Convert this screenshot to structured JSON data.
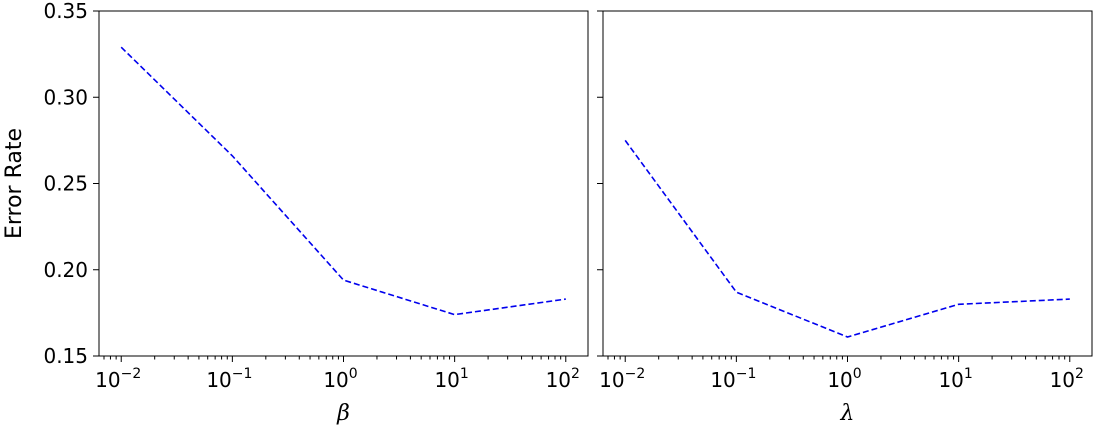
{
  "chart_data": [
    {
      "type": "line",
      "xscale": "log",
      "x": [
        0.01,
        0.1,
        1,
        10,
        100
      ],
      "x_tick_labels": [
        {
          "base": "10",
          "exp": "−2"
        },
        {
          "base": "10",
          "exp": "−1"
        },
        {
          "base": "10",
          "exp": "0"
        },
        {
          "base": "10",
          "exp": "1"
        },
        {
          "base": "10",
          "exp": "2"
        }
      ],
      "series": [
        {
          "values": [
            0.329,
            0.266,
            0.194,
            0.174,
            0.183
          ],
          "color": "#0000ee",
          "style": "dashed"
        }
      ],
      "xlabel": "β",
      "ylabel": "Error Rate",
      "ylim": [
        0.15,
        0.35
      ],
      "y_ticks": [
        0.15,
        0.2,
        0.25,
        0.3,
        0.35
      ],
      "y_tick_labels": [
        "0.15",
        "0.20",
        "0.25",
        "0.30",
        "0.35"
      ],
      "grid": false
    },
    {
      "type": "line",
      "xscale": "log",
      "x": [
        0.01,
        0.1,
        1,
        10,
        100
      ],
      "x_tick_labels": [
        {
          "base": "10",
          "exp": "−2"
        },
        {
          "base": "10",
          "exp": "−1"
        },
        {
          "base": "10",
          "exp": "0"
        },
        {
          "base": "10",
          "exp": "1"
        },
        {
          "base": "10",
          "exp": "2"
        }
      ],
      "series": [
        {
          "values": [
            0.275,
            0.187,
            0.161,
            0.18,
            0.183
          ],
          "color": "#0000ee",
          "style": "dashed"
        }
      ],
      "xlabel": "λ",
      "ylabel": "",
      "ylim": [
        0.15,
        0.35
      ],
      "y_ticks": [
        0.15,
        0.2,
        0.25,
        0.3,
        0.35
      ],
      "y_tick_labels": [],
      "grid": false
    }
  ]
}
